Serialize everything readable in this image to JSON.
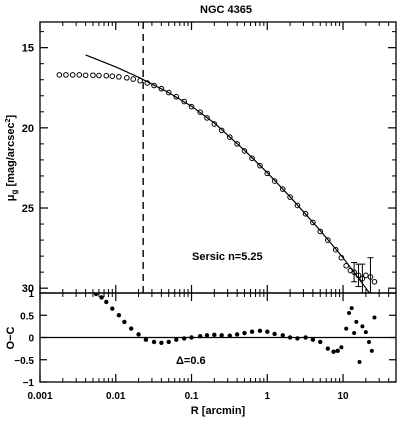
{
  "chart_data": [
    {
      "type": "scatter",
      "title": "NGC 4365",
      "ylabel_main": "μ",
      "ylabel_sub": "g",
      "ylabel_rest": " [mag/arcsec",
      "ylabel_sup": "2",
      "ylabel_close": "]",
      "annotation": "Sersic n=5.25",
      "xscale": "log",
      "xlim": [
        0.001,
        50
      ],
      "ylim": [
        30.3,
        13.4
      ],
      "yaxis_inverted": true,
      "ytick_labels": [
        "15",
        "20",
        "25",
        "30"
      ],
      "ytick_values": [
        15,
        20,
        25,
        30
      ],
      "vline_x": 0.023,
      "series": [
        {
          "style": "open-circles",
          "x": [
            0.0018,
            0.0022,
            0.0027,
            0.0033,
            0.004,
            0.005,
            0.006,
            0.0075,
            0.009,
            0.011,
            0.014,
            0.017,
            0.021,
            0.026,
            0.032,
            0.04,
            0.05,
            0.063,
            0.08,
            0.1,
            0.13,
            0.16,
            0.2,
            0.25,
            0.32,
            0.4,
            0.5,
            0.63,
            0.8,
            1.0,
            1.25,
            1.6,
            2.0,
            2.5,
            3.2,
            4.0,
            5.0,
            6.3,
            8.0,
            9.5,
            11,
            12.5,
            14,
            16,
            18,
            20,
            23,
            26
          ],
          "y": [
            16.7,
            16.7,
            16.7,
            16.7,
            16.72,
            16.72,
            16.74,
            16.75,
            16.78,
            16.82,
            16.88,
            16.96,
            17.06,
            17.2,
            17.36,
            17.56,
            17.8,
            18.06,
            18.36,
            18.68,
            19.02,
            19.38,
            19.76,
            20.16,
            20.58,
            21.0,
            21.44,
            21.9,
            22.36,
            22.84,
            23.32,
            23.82,
            24.32,
            24.84,
            25.36,
            25.9,
            26.46,
            27.0,
            27.6,
            28.1,
            28.6,
            28.9,
            29.0,
            29.2,
            29.4,
            29.2,
            29.3,
            29.6
          ]
        },
        {
          "style": "error-bars",
          "x": [
            14,
            16,
            18,
            23
          ],
          "y": [
            29.0,
            29.2,
            29.4,
            29.3
          ],
          "err": [
            0.6,
            0.7,
            0.9,
            1.2
          ]
        },
        {
          "style": "line",
          "name": "",
          "x": [
            0.004,
            0.01,
            0.02,
            0.05,
            0.1,
            0.2,
            0.5,
            1,
            2,
            5,
            10,
            20,
            30,
            45
          ],
          "y": [
            15.45,
            16.2,
            16.85,
            17.8,
            18.65,
            19.7,
            21.4,
            22.8,
            24.3,
            26.4,
            28.1,
            30.0,
            31.1,
            32.5
          ]
        }
      ]
    },
    {
      "type": "scatter",
      "xlabel": "R [arcmin]",
      "ylabel": "O−C",
      "annotation": "Δ=0.6",
      "xscale": "log",
      "xlim": [
        0.001,
        50
      ],
      "ylim": [
        -1,
        1
      ],
      "xtick_labels": [
        "0.001",
        "0.01",
        "0.1",
        "1",
        "10"
      ],
      "xtick_values": [
        0.001,
        0.01,
        0.1,
        1,
        10
      ],
      "ytick_labels": [
        "1",
        "0.5",
        "0",
        "−0.5",
        "−1"
      ],
      "ytick_values": [
        1,
        0.5,
        0,
        -0.5,
        -1
      ],
      "zero_line": 0,
      "vline_x": 0.023,
      "series": [
        {
          "style": "filled-dots",
          "x": [
            0.0055,
            0.0065,
            0.0075,
            0.009,
            0.011,
            0.013,
            0.016,
            0.02,
            0.025,
            0.032,
            0.04,
            0.05,
            0.063,
            0.08,
            0.1,
            0.13,
            0.16,
            0.2,
            0.25,
            0.32,
            0.4,
            0.5,
            0.63,
            0.8,
            1.0,
            1.25,
            1.6,
            2.0,
            2.5,
            3.2,
            4.0,
            5.0,
            6.3,
            7.5,
            8.5
          ],
          "y": [
            0.98,
            0.9,
            0.8,
            0.65,
            0.5,
            0.35,
            0.2,
            0.07,
            -0.05,
            -0.1,
            -0.12,
            -0.1,
            -0.05,
            -0.02,
            0.0,
            0.03,
            0.05,
            0.06,
            0.05,
            0.04,
            0.07,
            0.1,
            0.13,
            0.15,
            0.13,
            0.08,
            0.05,
            0.0,
            -0.02,
            0.0,
            -0.05,
            -0.1,
            -0.25,
            -0.32,
            -0.3
          ]
        },
        {
          "style": "filled-dots-sparse",
          "x": [
            9.5,
            11,
            12,
            13,
            14,
            15,
            16.5,
            18,
            20,
            22,
            24,
            26
          ],
          "y": [
            -0.22,
            0.2,
            0.55,
            0.66,
            0.1,
            0.35,
            -0.55,
            0.25,
            0.12,
            -0.1,
            -0.3,
            0.45
          ]
        }
      ]
    }
  ]
}
